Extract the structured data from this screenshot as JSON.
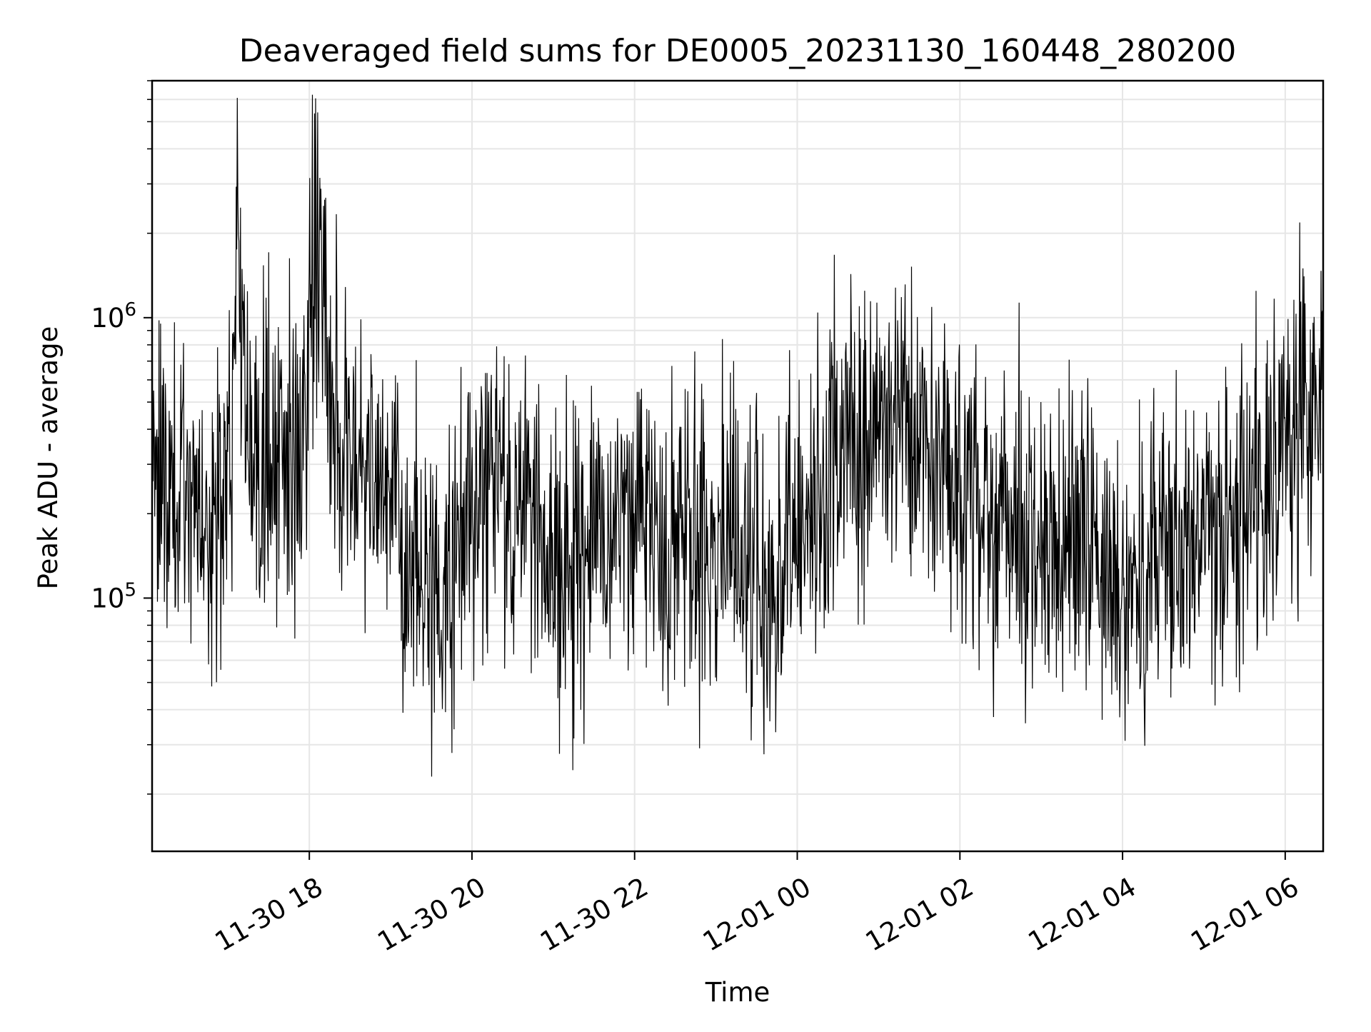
{
  "chart_data": {
    "type": "line",
    "title": "Deaveraged field sums for DE0005_20231130_160448_280200",
    "xlabel": "Time",
    "ylabel": "Peak ADU - average",
    "yscale": "log",
    "xlim": [
      "2023-11-30 16:04",
      "2023-12-01 06:28"
    ],
    "ylim": [
      12500,
      7000000
    ],
    "x_ticks": [
      {
        "value": "2023-11-30 18:00",
        "label": "11-30 18"
      },
      {
        "value": "2023-11-30 20:00",
        "label": "11-30 20"
      },
      {
        "value": "2023-11-30 22:00",
        "label": "11-30 22"
      },
      {
        "value": "2023-12-01 00:00",
        "label": "12-01 00"
      },
      {
        "value": "2023-12-01 02:00",
        "label": "12-01 02"
      },
      {
        "value": "2023-12-01 04:00",
        "label": "12-01 04"
      },
      {
        "value": "2023-12-01 06:00",
        "label": "12-01 06"
      }
    ],
    "y_ticks": [
      {
        "value": 100000,
        "base": "10",
        "exp": "5"
      },
      {
        "value": 1000000,
        "base": "10",
        "exp": "6"
      }
    ],
    "grid": true,
    "line_color": "#000000",
    "grid_color": "#e6e6e6",
    "series": [
      {
        "x": [
          "2023-11-30 16:04",
          "2023-11-30 16:15",
          "2023-11-30 16:30",
          "2023-11-30 16:45",
          "2023-11-30 17:00",
          "2023-11-30 17:08",
          "2023-11-30 17:15",
          "2023-11-30 17:30",
          "2023-11-30 17:45",
          "2023-11-30 17:55",
          "2023-11-30 18:00",
          "2023-11-30 18:08",
          "2023-11-30 18:15",
          "2023-11-30 18:30",
          "2023-11-30 18:45",
          "2023-11-30 19:00",
          "2023-11-30 19:15",
          "2023-11-30 19:30",
          "2023-11-30 19:45",
          "2023-11-30 20:00",
          "2023-11-30 20:15",
          "2023-11-30 20:30",
          "2023-11-30 20:45",
          "2023-11-30 21:00",
          "2023-11-30 21:15",
          "2023-11-30 21:30",
          "2023-11-30 21:45",
          "2023-11-30 22:00",
          "2023-11-30 22:15",
          "2023-11-30 22:30",
          "2023-11-30 22:45",
          "2023-11-30 23:00",
          "2023-11-30 23:15",
          "2023-11-30 23:30",
          "2023-11-30 23:45",
          "2023-12-01 00:00",
          "2023-12-01 00:15",
          "2023-12-01 00:30",
          "2023-12-01 00:45",
          "2023-12-01 01:00",
          "2023-12-01 01:15",
          "2023-12-01 01:30",
          "2023-12-01 01:45",
          "2023-12-01 02:00",
          "2023-12-01 02:15",
          "2023-12-01 02:30",
          "2023-12-01 02:45",
          "2023-12-01 03:00",
          "2023-12-01 03:15",
          "2023-12-01 03:30",
          "2023-12-01 03:45",
          "2023-12-01 04:00",
          "2023-12-01 04:15",
          "2023-12-01 04:30",
          "2023-12-01 04:45",
          "2023-12-01 05:00",
          "2023-12-01 05:15",
          "2023-12-01 05:30",
          "2023-12-01 05:45",
          "2023-12-01 06:00",
          "2023-12-01 06:15",
          "2023-12-01 06:28"
        ],
        "y": [
          300000,
          250000,
          220000,
          180000,
          200000,
          1800000,
          250000,
          300000,
          350000,
          300000,
          800000,
          1500000,
          500000,
          350000,
          300000,
          250000,
          150000,
          100000,
          120000,
          200000,
          250000,
          180000,
          200000,
          140000,
          120000,
          200000,
          180000,
          220000,
          180000,
          150000,
          130000,
          150000,
          180000,
          120000,
          100000,
          200000,
          250000,
          300000,
          350000,
          400000,
          500000,
          350000,
          300000,
          250000,
          200000,
          180000,
          150000,
          140000,
          130000,
          200000,
          150000,
          120000,
          110000,
          130000,
          150000,
          180000,
          170000,
          190000,
          200000,
          300000,
          500000,
          400000
        ]
      }
    ]
  }
}
